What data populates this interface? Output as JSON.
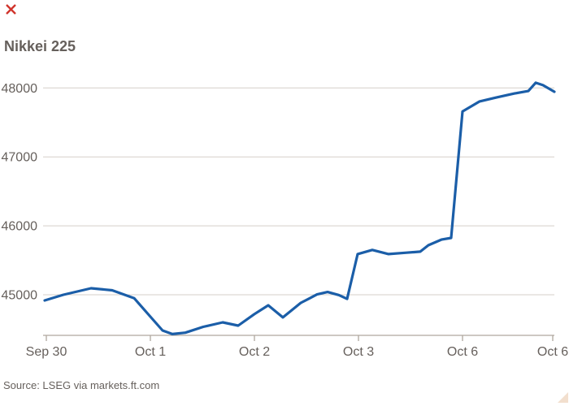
{
  "title": "Nikkei 225",
  "source": "Source: LSEG via markets.ft.com",
  "colors": {
    "line": "#1B5EA8",
    "grid": "#D5CFC9",
    "axis": "#AFA79E",
    "text": "#66605C",
    "background": "#FFFFFF",
    "close_x": "#D0342C",
    "resize_handle": "#F2DFCE"
  },
  "icons": {
    "close_x": "x-mark top-left",
    "resize_handle": "triangle bottom-right"
  },
  "chart_data": {
    "type": "line",
    "title": "Nikkei 225",
    "xlabel": "",
    "ylabel": "",
    "legend": "none",
    "grid": "horizontal",
    "ylim": [
      44410,
      48290
    ],
    "y_ticks": [
      45000,
      46000,
      47000,
      48000
    ],
    "x_ticks": [
      {
        "label": "Sep 30",
        "t": 0.0064
      },
      {
        "label": "Oct 1",
        "t": 0.2098
      },
      {
        "label": "Oct 2",
        "t": 0.4133
      },
      {
        "label": "Oct 3",
        "t": 0.6168
      },
      {
        "label": "Oct 6",
        "t": 0.8204
      },
      {
        "label": "Oct 6",
        "t": 0.9968
      }
    ],
    "series": [
      {
        "name": "Nikkei 225",
        "points": [
          [
            0.0032,
            44918
          ],
          [
            0.0397,
            45000
          ],
          [
            0.0938,
            45094
          ],
          [
            0.1351,
            45065
          ],
          [
            0.1781,
            44950
          ],
          [
            0.2098,
            44682
          ],
          [
            0.2337,
            44482
          ],
          [
            0.2528,
            44430
          ],
          [
            0.2782,
            44450
          ],
          [
            0.3132,
            44535
          ],
          [
            0.3513,
            44600
          ],
          [
            0.3816,
            44553
          ],
          [
            0.4133,
            44720
          ],
          [
            0.4404,
            44847
          ],
          [
            0.469,
            44671
          ],
          [
            0.504,
            44882
          ],
          [
            0.5358,
            45005
          ],
          [
            0.5564,
            45040
          ],
          [
            0.5787,
            44995
          ],
          [
            0.5946,
            44940
          ],
          [
            0.6153,
            45590
          ],
          [
            0.6439,
            45650
          ],
          [
            0.6757,
            45590
          ],
          [
            0.7107,
            45610
          ],
          [
            0.7377,
            45625
          ],
          [
            0.7536,
            45718
          ],
          [
            0.779,
            45800
          ],
          [
            0.7981,
            45825
          ],
          [
            0.8204,
            47660
          ],
          [
            0.8538,
            47805
          ],
          [
            0.8856,
            47860
          ],
          [
            0.9221,
            47920
          ],
          [
            0.9491,
            47955
          ],
          [
            0.9634,
            48075
          ],
          [
            0.9777,
            48040
          ],
          [
            1.0,
            47945
          ]
        ]
      }
    ]
  }
}
